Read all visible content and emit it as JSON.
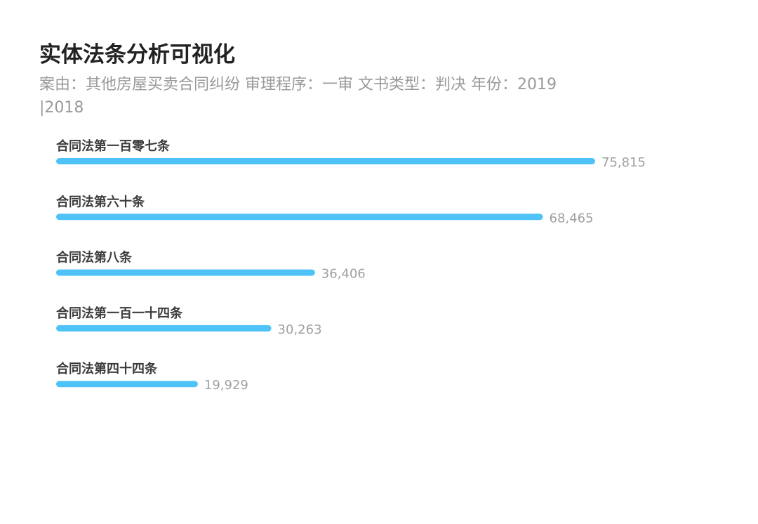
{
  "header": {
    "title": "实体法条分析可视化",
    "subtitle": "案由：其他房屋买卖合同纠纷  审理程序：一审  文书类型：判决  年份：2019 |2018"
  },
  "colors": {
    "bar": "#4fc3f7",
    "title": "#222222",
    "subtitle": "#9a9a9a"
  },
  "chart_data": {
    "type": "bar",
    "orientation": "horizontal",
    "title": "",
    "xlabel": "",
    "ylabel": "",
    "grid": false,
    "categories": [
      "合同法第一百零七条",
      "合同法第六十条",
      "合同法第八条",
      "合同法第一百一十四条",
      "合同法第四十四条"
    ],
    "values": [
      75815,
      68465,
      36406,
      30263,
      19929
    ],
    "value_labels": [
      "75,815",
      "68,465",
      "36,406",
      "30,263",
      "19,929"
    ]
  }
}
